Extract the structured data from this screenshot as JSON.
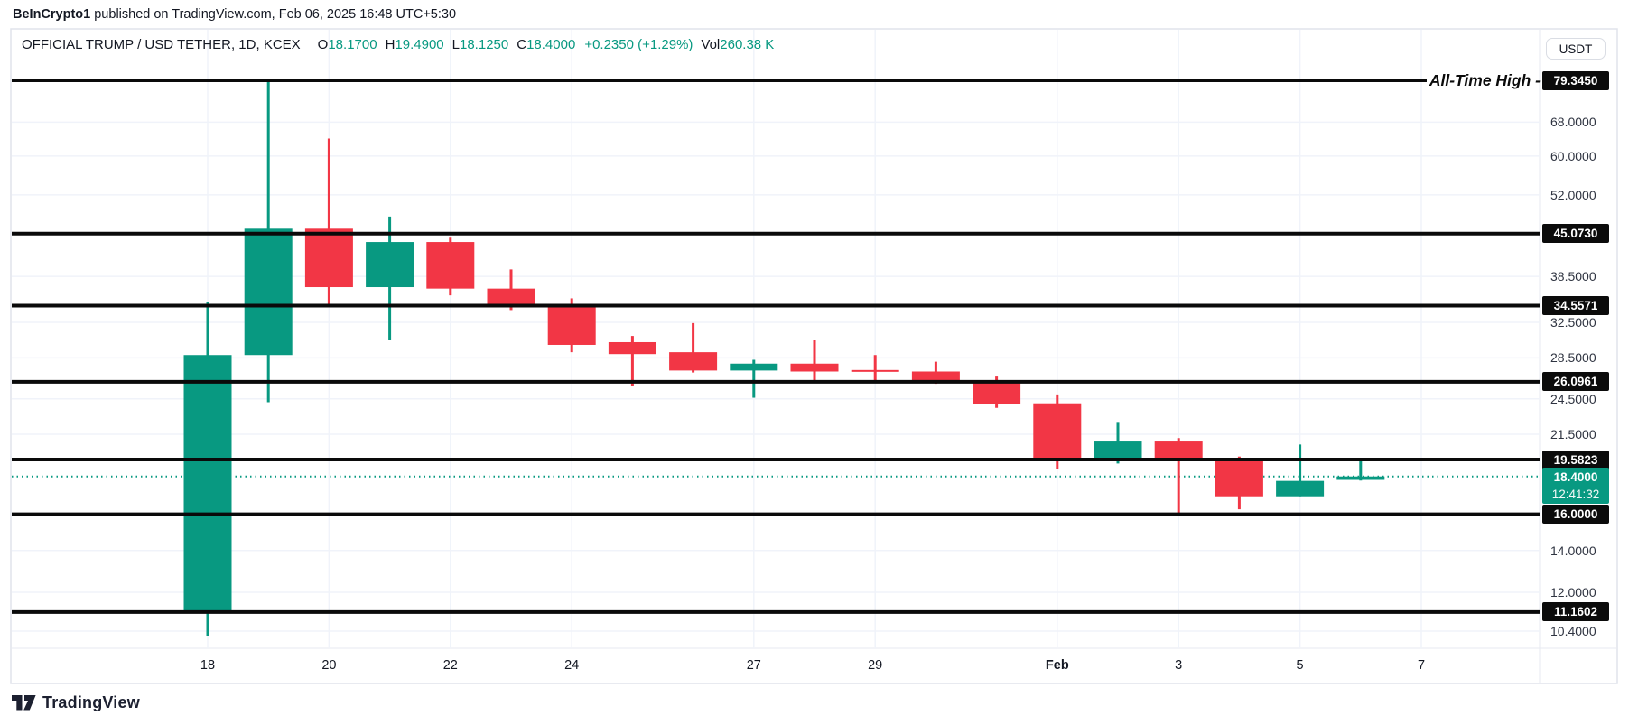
{
  "attribution": {
    "author": "BeInCrypto1",
    "text": " published on TradingView.com, Feb 06, 2025 16:48 UTC+5:30"
  },
  "legend": {
    "symbol": "OFFICIAL TRUMP / USD TETHER, 1D, KCEX",
    "o_label": "O",
    "o_value": "18.1700",
    "h_label": "H",
    "h_value": "19.4900",
    "l_label": "L",
    "l_value": "18.1250",
    "c_label": "C",
    "c_value": "18.4000",
    "change": "+0.2350 (+1.29%)",
    "vol_label": "Vol",
    "vol_value": "260.38 K"
  },
  "toolbar": {
    "currency_label": "USDT"
  },
  "footer": {
    "brand": "TradingView"
  },
  "chart_data": {
    "type": "candlestick",
    "title": "OFFICIAL TRUMP / USD TETHER, 1D, KCEX",
    "y_scale": "log",
    "ylim": [
      10.0,
      81.5
    ],
    "grid": true,
    "up_color": "#089981",
    "down_color": "#F23645",
    "level_line_color": "#0a0a0a",
    "price_ticks": [
      {
        "label": "68.0000",
        "price": 68.0
      },
      {
        "label": "60.0000",
        "price": 60.0
      },
      {
        "label": "52.0000",
        "price": 52.0
      },
      {
        "label": "38.5000",
        "price": 38.5
      },
      {
        "label": "32.5000",
        "price": 32.5
      },
      {
        "label": "28.5000",
        "price": 28.5
      },
      {
        "label": "24.5000",
        "price": 24.5
      },
      {
        "label": "21.5000",
        "price": 21.5
      },
      {
        "label": "14.0000",
        "price": 14.0
      },
      {
        "label": "12.0000",
        "price": 12.0
      },
      {
        "label": "10.4000",
        "price": 10.4
      }
    ],
    "level_lines": [
      {
        "price": 79.345,
        "label": "79.3450",
        "annotation": "All-Time High -"
      },
      {
        "price": 45.073,
        "label": "45.0730"
      },
      {
        "price": 34.5571,
        "label": "34.5571"
      },
      {
        "price": 26.0961,
        "label": "26.0961"
      },
      {
        "price": 19.5823,
        "label": "19.5823"
      },
      {
        "price": 16.0,
        "label": "16.0000"
      },
      {
        "price": 11.1602,
        "label": "11.1602"
      }
    ],
    "current_price": {
      "price": 18.4,
      "label": "18.4000",
      "countdown": "12:41:32"
    },
    "time_ticks": [
      {
        "label": "18",
        "day_index": 0
      },
      {
        "label": "20",
        "day_index": 2
      },
      {
        "label": "22",
        "day_index": 4
      },
      {
        "label": "24",
        "day_index": 6
      },
      {
        "label": "27",
        "day_index": 9
      },
      {
        "label": "29",
        "day_index": 11
      },
      {
        "label": "Feb",
        "day_index": 14,
        "bold": true
      },
      {
        "label": "3",
        "day_index": 16
      },
      {
        "label": "5",
        "day_index": 18
      },
      {
        "label": "7",
        "day_index": 20
      }
    ],
    "candles": [
      {
        "date": "Jan 18",
        "open": 11.16,
        "high": 34.97,
        "low": 10.23,
        "close": 28.8
      },
      {
        "date": "Jan 19",
        "open": 28.8,
        "high": 79.345,
        "low": 24.2,
        "close": 45.9
      },
      {
        "date": "Jan 20",
        "open": 45.9,
        "high": 64.0,
        "low": 34.4,
        "close": 37.0
      },
      {
        "date": "Jan 21",
        "open": 37.0,
        "high": 48.0,
        "low": 30.4,
        "close": 43.7
      },
      {
        "date": "Jan 22",
        "open": 43.7,
        "high": 44.4,
        "low": 35.9,
        "close": 36.8
      },
      {
        "date": "Jan 23",
        "open": 36.8,
        "high": 39.5,
        "low": 34.0,
        "close": 34.5
      },
      {
        "date": "Jan 24",
        "open": 34.6,
        "high": 35.5,
        "low": 29.1,
        "close": 29.9
      },
      {
        "date": "Jan 25",
        "open": 30.2,
        "high": 30.9,
        "low": 25.7,
        "close": 28.9
      },
      {
        "date": "Jan 26",
        "open": 29.1,
        "high": 32.4,
        "low": 27.0,
        "close": 27.2
      },
      {
        "date": "Jan 27",
        "open": 27.2,
        "high": 28.3,
        "low": 24.6,
        "close": 27.9
      },
      {
        "date": "Jan 28",
        "open": 27.9,
        "high": 30.4,
        "low": 26.1,
        "close": 27.1
      },
      {
        "date": "Jan 29",
        "open": 27.25,
        "high": 28.8,
        "low": 26.2,
        "close": 27.1
      },
      {
        "date": "Jan 30",
        "open": 27.1,
        "high": 28.1,
        "low": 25.9,
        "close": 26.0
      },
      {
        "date": "Jan 31",
        "open": 26.0,
        "high": 26.6,
        "low": 23.7,
        "close": 24.0
      },
      {
        "date": "Feb 1",
        "open": 24.1,
        "high": 24.9,
        "low": 18.9,
        "close": 19.6
      },
      {
        "date": "Feb 2",
        "open": 19.6,
        "high": 22.5,
        "low": 19.3,
        "close": 21.0
      },
      {
        "date": "Feb 3",
        "open": 21.0,
        "high": 21.2,
        "low": 16.0,
        "close": 19.6
      },
      {
        "date": "Feb 4",
        "open": 19.6,
        "high": 19.8,
        "low": 16.3,
        "close": 17.1
      },
      {
        "date": "Feb 5",
        "open": 17.1,
        "high": 20.7,
        "low": 17.1,
        "close": 18.1
      },
      {
        "date": "Feb 6",
        "open": 18.17,
        "high": 19.49,
        "low": 18.125,
        "close": 18.4
      }
    ]
  }
}
